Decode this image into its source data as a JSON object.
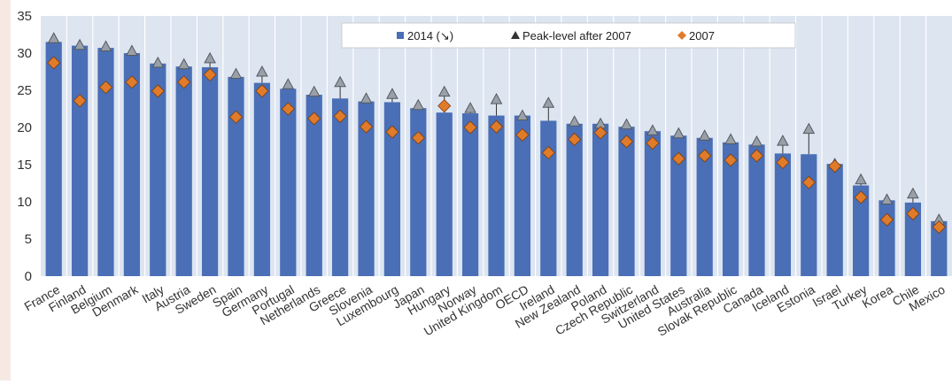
{
  "chart_data": {
    "type": "bar",
    "title": "",
    "xlabel": "",
    "ylabel": "",
    "ylim": [
      0,
      35
    ],
    "yticks": [
      0,
      5,
      10,
      15,
      20,
      25,
      30,
      35
    ],
    "grid": {
      "x": true,
      "y": false
    },
    "legend_position": "top",
    "categories": [
      "France",
      "Finland",
      "Belgium",
      "Denmark",
      "Italy",
      "Austria",
      "Sweden",
      "Spain",
      "Germany",
      "Portugal",
      "Netherlands",
      "Greece",
      "Slovenia",
      "Luxembourg",
      "Japan",
      "Hungary",
      "Norway",
      "United Kingdom",
      "OECD",
      "Ireland",
      "New Zealand",
      "Poland",
      "Czech Republic",
      "Switzerland",
      "United States",
      "Australia",
      "Slovak Republic",
      "Canada",
      "Iceland",
      "Estonia",
      "Israel",
      "Turkey",
      "Korea",
      "Chile",
      "Mexico"
    ],
    "series": [
      {
        "name": "2014 (↘)",
        "kind": "bar",
        "color": "#4a6fb6",
        "values": [
          31.5,
          31.0,
          30.7,
          30.0,
          28.6,
          28.2,
          28.1,
          26.8,
          26.0,
          25.2,
          24.4,
          23.9,
          23.5,
          23.4,
          22.6,
          22.0,
          21.9,
          21.6,
          21.6,
          20.9,
          20.5,
          20.5,
          20.1,
          19.5,
          18.9,
          18.6,
          18.0,
          17.7,
          16.5,
          16.4,
          15.1,
          12.2,
          10.2,
          9.9,
          7.4
        ]
      },
      {
        "name": "Peak-level after 2007",
        "kind": "triangle",
        "color": "#9aa0a8",
        "values": [
          32.0,
          31.1,
          30.9,
          30.3,
          28.7,
          28.5,
          29.3,
          27.2,
          27.5,
          25.8,
          24.8,
          26.1,
          23.9,
          24.5,
          23.0,
          24.8,
          22.6,
          23.8,
          21.6,
          23.3,
          20.8,
          20.5,
          20.4,
          19.6,
          19.2,
          18.9,
          18.4,
          18.1,
          18.2,
          19.8,
          15.1,
          13.0,
          10.3,
          11.1,
          7.6
        ]
      },
      {
        "name": "2007",
        "kind": "diamond",
        "color": "#e07b2a",
        "values": [
          28.7,
          23.6,
          25.4,
          26.1,
          24.9,
          26.1,
          27.1,
          21.4,
          24.9,
          22.5,
          21.2,
          21.5,
          20.1,
          19.4,
          18.6,
          22.9,
          20.0,
          20.1,
          19.0,
          16.6,
          18.4,
          19.3,
          18.1,
          17.9,
          15.8,
          16.2,
          15.6,
          16.2,
          15.3,
          12.6,
          14.8,
          10.6,
          7.6,
          8.4,
          6.6
        ]
      }
    ]
  }
}
